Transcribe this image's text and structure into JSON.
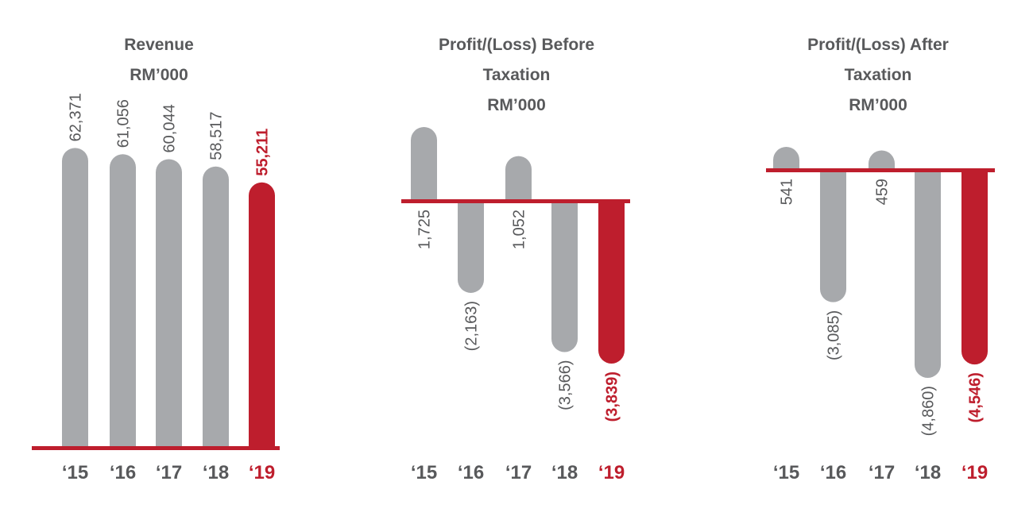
{
  "colors": {
    "gray": "#a7a9ac",
    "accent": "#be1e2d",
    "text": "#58595b",
    "axis": "#be1e2d"
  },
  "chart_data": [
    {
      "type": "bar",
      "title": "Revenue\nRM’000",
      "categories": [
        "‘15",
        "‘16",
        "‘17",
        "‘18",
        "‘19"
      ],
      "values": [
        62371,
        61056,
        60044,
        58517,
        55211
      ],
      "value_labels": [
        "62,371",
        "61,056",
        "60,044",
        "58,517",
        "55,211"
      ],
      "highlight_index": 4,
      "ylim": [
        0,
        70000
      ]
    },
    {
      "type": "bar",
      "title": "Profit/(Loss) Before\nTaxation\nRM’000",
      "categories": [
        "‘15",
        "‘16",
        "‘17",
        "‘18",
        "‘19"
      ],
      "values": [
        1725,
        -2163,
        1052,
        -3566,
        -3839
      ],
      "value_labels": [
        "1,725",
        "(2,163)",
        "1,052",
        "(3,566)",
        "(3,839)"
      ],
      "highlight_index": 4,
      "ylim": [
        -3839,
        1725
      ]
    },
    {
      "type": "bar",
      "title": "Profit/(Loss) After\nTaxation\nRM’000",
      "categories": [
        "‘15",
        "‘16",
        "‘17",
        "‘18",
        "‘19"
      ],
      "values": [
        541,
        -3085,
        459,
        -4860,
        -4546
      ],
      "value_labels": [
        "541",
        "(3,085)",
        "459",
        "(4,860)",
        "(4,546)"
      ],
      "highlight_index": 4,
      "ylim": [
        -4860,
        541
      ]
    }
  ]
}
